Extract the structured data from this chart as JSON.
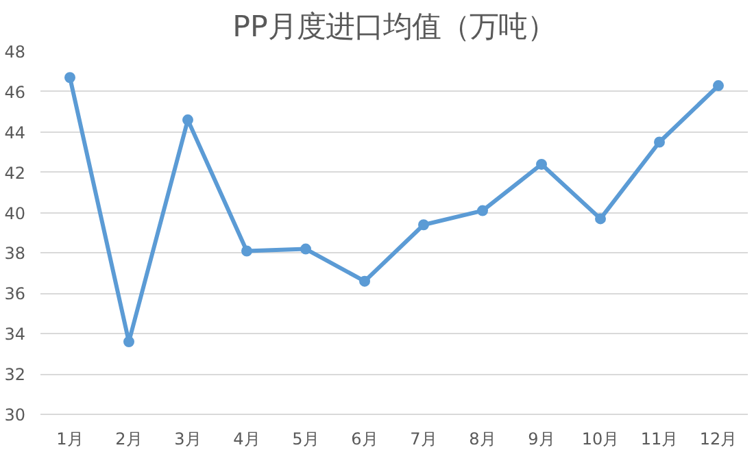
{
  "chart_data": {
    "type": "line",
    "title": "PP月度进口均值（万吨）",
    "categories": [
      "1月",
      "2月",
      "3月",
      "4月",
      "5月",
      "6月",
      "7月",
      "8月",
      "9月",
      "10月",
      "11月",
      "12月"
    ],
    "series": [
      {
        "color": "#5b9bd5",
        "values": [
          46.7,
          33.6,
          44.6,
          38.1,
          38.2,
          36.6,
          39.4,
          40.1,
          42.4,
          39.7,
          43.5,
          46.3
        ]
      }
    ],
    "ylim": [
      30,
      48
    ],
    "yticks": [
      30,
      32,
      34,
      36,
      38,
      40,
      42,
      44,
      46,
      48
    ],
    "grid": "y",
    "marker": "circle",
    "line_style": "solid"
  }
}
